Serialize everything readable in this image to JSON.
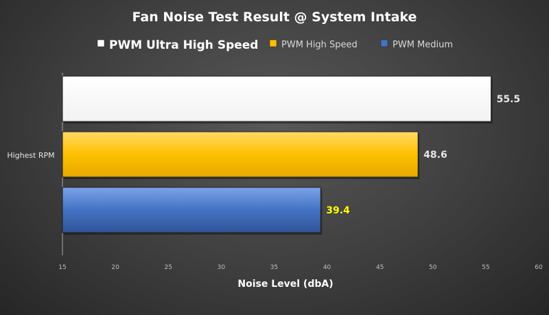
{
  "chart_data": {
    "type": "bar",
    "orientation": "horizontal",
    "title": "Fan Noise Test Result @ System Intake",
    "xlabel": "Noise Level (dbA)",
    "ylabel": "",
    "categories": [
      "Highest RPM"
    ],
    "xlim": [
      15,
      60
    ],
    "xticks": [
      15,
      20,
      25,
      30,
      35,
      40,
      45,
      50,
      55,
      60
    ],
    "grid": false,
    "legend_position": "top",
    "series": [
      {
        "name": "PWM Ultra High Speed",
        "values": [
          55.5
        ],
        "color": "#ffffff",
        "label_color": "#e6e6e6"
      },
      {
        "name": "PWM High Speed",
        "values": [
          48.6
        ],
        "color": "#ffc000",
        "label_color": "#e6e6e6"
      },
      {
        "name": "PWM Medium",
        "values": [
          39.4
        ],
        "color": "#4472c4",
        "label_color": "#ffff00"
      }
    ]
  }
}
